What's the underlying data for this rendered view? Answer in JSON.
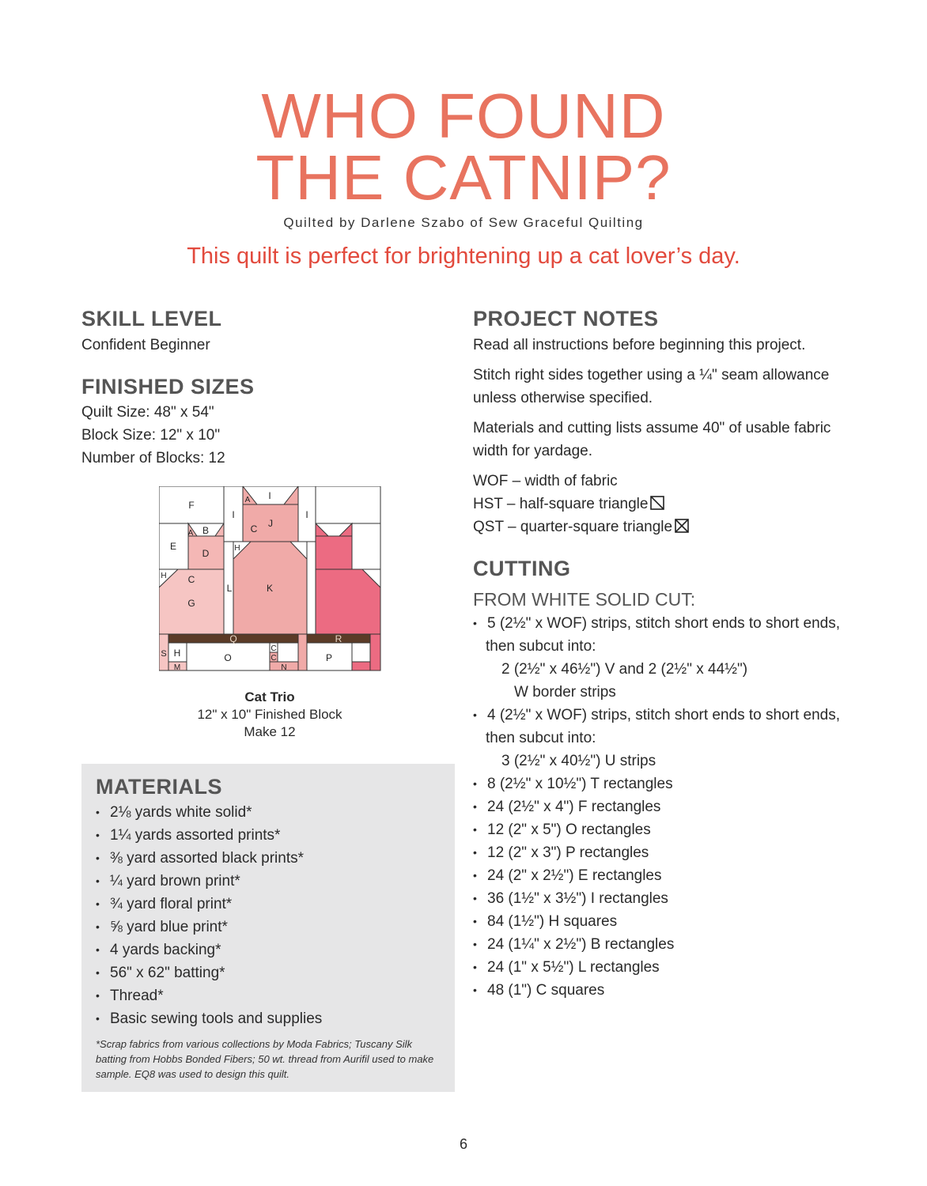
{
  "title": {
    "line1": "WHO FOUND",
    "line2": "THE CATNIP?"
  },
  "byline": "Quilted by Darlene Szabo of Sew Graceful Quilting",
  "tagline": "This quilt is perfect for brightening up a cat lover’s day.",
  "skill": {
    "heading": "SKILL LEVEL",
    "value": "Confident Beginner"
  },
  "sizes": {
    "heading": "FINISHED SIZES",
    "items": [
      "Quilt Size: 48\" x 54\"",
      "Block Size: 12\" x 10\"",
      "Number of Blocks: 12"
    ]
  },
  "block": {
    "labels": {
      "F": "F",
      "I": "I",
      "A": "A",
      "B": "B",
      "C": "C",
      "J": "J",
      "E": "E",
      "D": "D",
      "H": "H",
      "G": "G",
      "L": "L",
      "K": "K",
      "Q": "Q",
      "R": "R",
      "S": "S",
      "O": "O",
      "P": "P",
      "M": "M",
      "N": "N"
    },
    "caption_title": "Cat Trio",
    "caption_line2": "12\" x 10\" Finished Block",
    "caption_line3": "Make 12",
    "colors": {
      "light_pink": "#f6c5c3",
      "mid_pink": "#f0aaa8",
      "dark_pink": "#ec6b82",
      "brown": "#5b3b27"
    }
  },
  "materials": {
    "heading": "MATERIALS",
    "items": [
      "2⅛ yards white solid*",
      "1¼ yards assorted prints*",
      "⅜ yard assorted black prints*",
      "¼ yard brown print*",
      "¾ yard floral print*",
      "⅝ yard blue print*",
      "4 yards backing*",
      "56\" x 62\" batting*",
      "Thread*",
      "Basic sewing tools and supplies"
    ],
    "footnote": "*Scrap fabrics from various collections by Moda Fabrics; Tuscany Silk batting from Hobbs Bonded Fibers; 50 wt. thread from Aurifil used to make sample. EQ8 was used to design this quilt."
  },
  "notes": {
    "heading": "PROJECT NOTES",
    "p1": "Read all instructions before beginning this project.",
    "p2": "Stitch right sides together using a ¼\" seam allowance unless otherwise specified.",
    "p3": "Materials and cutting lists assume 40\" of usable fabric width for yardage.",
    "wof": "WOF – width of fabric",
    "hst": "HST – half-square triangle",
    "qst": "QST – quarter-square triangle"
  },
  "cutting": {
    "heading": "CUTTING",
    "subheading": "FROM WHITE SOLID CUT:",
    "s1": "5 (2½\" x WOF) strips, stitch short ends to short ends,",
    "s1b": "then subcut into:",
    "s1c": "2 (2½\" x 46½\") V and 2 (2½\" x 44½\")",
    "s1d": "W border strips",
    "s2": "4 (2½\" x WOF) strips, stitch short ends to short ends,",
    "s2b": "then subcut into:",
    "s2c": "3 (2½\" x 40½\") U strips",
    "items": [
      "8 (2½\" x 10½\") T rectangles",
      "24 (2½\" x 4\") F rectangles",
      "12 (2\" x 5\") O rectangles",
      "12 (2\" x 3\") P rectangles",
      "24 (2\" x 2½\") E rectangles",
      "36 (1½\" x 3½\") I rectangles",
      "84 (1½\") H squares",
      "24 (1¼\" x 2½\") B rectangles",
      "24 (1\" x 5½\") L rectangles",
      "48 (1\") C squares"
    ]
  },
  "page_number": "6"
}
